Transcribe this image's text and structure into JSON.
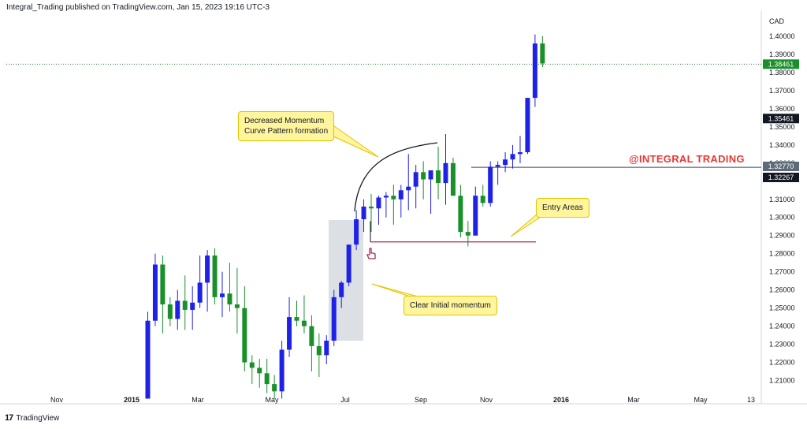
{
  "header": {
    "text": "Integral_Trading published on TradingView.com, Jan 15, 2023 19:16 UTC-3"
  },
  "footer": {
    "logo": "17",
    "brand": "TradingView"
  },
  "annotations": {
    "momentum_line1": "Decreased Momentum",
    "momentum_line2": "Curve Pattern formation",
    "entry": "Entry Areas",
    "initial": "Clear Initial momentum",
    "brand": "@INTEGRAL TRADING"
  },
  "colors": {
    "up": "#1e22e6",
    "down": "#1a8f2a",
    "price_line": "#2e7d32",
    "support_line": "#b0285a",
    "resistance_line": "#3c4a5a",
    "highlight_box": "#c9ced6",
    "callout_bg": "#fff59d"
  },
  "chart_data": {
    "type": "candlestick",
    "currency": "CAD",
    "ylim": [
      1.205,
      1.405
    ],
    "yticks": [
      "1.40000",
      "1.39000",
      "1.38000",
      "1.37000",
      "1.36000",
      "1.35000",
      "1.34000",
      "1.33000",
      "1.31000",
      "1.30000",
      "1.29000",
      "1.28000",
      "1.27000",
      "1.26000",
      "1.25000",
      "1.24000",
      "1.23000",
      "1.22000",
      "1.21000"
    ],
    "xticks": [
      "Nov",
      "2015",
      "Mar",
      "May",
      "Jul",
      "Sep",
      "Nov",
      "2016",
      "Mar",
      "May",
      "13"
    ],
    "price_labels": [
      {
        "value": 1.38461,
        "text": "1.38461",
        "style": "green"
      },
      {
        "value": 1.35461,
        "text": "1.35461",
        "style": "dark"
      },
      {
        "value": 1.3277,
        "text": "1.32770",
        "style": "gray"
      },
      {
        "value": 1.32267,
        "text": "1.32267",
        "style": "dark"
      }
    ],
    "candles": [
      {
        "o": 1.2,
        "h": 1.248,
        "l": 1.2,
        "c": 1.243
      },
      {
        "o": 1.243,
        "h": 1.28,
        "l": 1.24,
        "c": 1.274
      },
      {
        "o": 1.274,
        "h": 1.279,
        "l": 1.236,
        "c": 1.252
      },
      {
        "o": 1.252,
        "h": 1.256,
        "l": 1.24,
        "c": 1.244
      },
      {
        "o": 1.244,
        "h": 1.26,
        "l": 1.238,
        "c": 1.254
      },
      {
        "o": 1.254,
        "h": 1.268,
        "l": 1.238,
        "c": 1.249
      },
      {
        "o": 1.249,
        "h": 1.262,
        "l": 1.238,
        "c": 1.253
      },
      {
        "o": 1.253,
        "h": 1.279,
        "l": 1.25,
        "c": 1.264
      },
      {
        "o": 1.264,
        "h": 1.282,
        "l": 1.248,
        "c": 1.279
      },
      {
        "o": 1.279,
        "h": 1.283,
        "l": 1.252,
        "c": 1.256
      },
      {
        "o": 1.256,
        "h": 1.27,
        "l": 1.245,
        "c": 1.258
      },
      {
        "o": 1.258,
        "h": 1.275,
        "l": 1.248,
        "c": 1.252
      },
      {
        "o": 1.252,
        "h": 1.272,
        "l": 1.236,
        "c": 1.25
      },
      {
        "o": 1.25,
        "h": 1.262,
        "l": 1.215,
        "c": 1.22
      },
      {
        "o": 1.22,
        "h": 1.224,
        "l": 1.208,
        "c": 1.217
      },
      {
        "o": 1.217,
        "h": 1.222,
        "l": 1.206,
        "c": 1.214
      },
      {
        "o": 1.214,
        "h": 1.222,
        "l": 1.203,
        "c": 1.208
      },
      {
        "o": 1.208,
        "h": 1.213,
        "l": 1.2,
        "c": 1.204
      },
      {
        "o": 1.204,
        "h": 1.232,
        "l": 1.2,
        "c": 1.227
      },
      {
        "o": 1.227,
        "h": 1.256,
        "l": 1.223,
        "c": 1.245
      },
      {
        "o": 1.245,
        "h": 1.254,
        "l": 1.24,
        "c": 1.243
      },
      {
        "o": 1.243,
        "h": 1.257,
        "l": 1.236,
        "c": 1.24
      },
      {
        "o": 1.24,
        "h": 1.246,
        "l": 1.215,
        "c": 1.229
      },
      {
        "o": 1.229,
        "h": 1.236,
        "l": 1.212,
        "c": 1.224
      },
      {
        "o": 1.224,
        "h": 1.235,
        "l": 1.219,
        "c": 1.232
      },
      {
        "o": 1.232,
        "h": 1.26,
        "l": 1.229,
        "c": 1.256
      },
      {
        "o": 1.256,
        "h": 1.265,
        "l": 1.25,
        "c": 1.264
      },
      {
        "o": 1.264,
        "h": 1.285,
        "l": 1.262,
        "c": 1.285
      },
      {
        "o": 1.285,
        "h": 1.304,
        "l": 1.282,
        "c": 1.299
      },
      {
        "o": 1.299,
        "h": 1.31,
        "l": 1.292,
        "c": 1.306
      },
      {
        "o": 1.306,
        "h": 1.313,
        "l": 1.292,
        "c": 1.305
      },
      {
        "o": 1.305,
        "h": 1.312,
        "l": 1.296,
        "c": 1.311
      },
      {
        "o": 1.311,
        "h": 1.314,
        "l": 1.3,
        "c": 1.312
      },
      {
        "o": 1.312,
        "h": 1.318,
        "l": 1.296,
        "c": 1.31
      },
      {
        "o": 1.31,
        "h": 1.318,
        "l": 1.3,
        "c": 1.315
      },
      {
        "o": 1.315,
        "h": 1.335,
        "l": 1.304,
        "c": 1.317
      },
      {
        "o": 1.317,
        "h": 1.329,
        "l": 1.305,
        "c": 1.325
      },
      {
        "o": 1.325,
        "h": 1.331,
        "l": 1.31,
        "c": 1.321
      },
      {
        "o": 1.321,
        "h": 1.326,
        "l": 1.302,
        "c": 1.326
      },
      {
        "o": 1.326,
        "h": 1.339,
        "l": 1.31,
        "c": 1.319
      },
      {
        "o": 1.319,
        "h": 1.346,
        "l": 1.307,
        "c": 1.33
      },
      {
        "o": 1.33,
        "h": 1.333,
        "l": 1.312,
        "c": 1.312
      },
      {
        "o": 1.312,
        "h": 1.318,
        "l": 1.289,
        "c": 1.292
      },
      {
        "o": 1.292,
        "h": 1.298,
        "l": 1.284,
        "c": 1.29
      },
      {
        "o": 1.29,
        "h": 1.317,
        "l": 1.29,
        "c": 1.312
      },
      {
        "o": 1.312,
        "h": 1.318,
        "l": 1.306,
        "c": 1.308
      },
      {
        "o": 1.308,
        "h": 1.331,
        "l": 1.306,
        "c": 1.328
      },
      {
        "o": 1.328,
        "h": 1.331,
        "l": 1.318,
        "c": 1.329
      },
      {
        "o": 1.329,
        "h": 1.336,
        "l": 1.325,
        "c": 1.332
      },
      {
        "o": 1.332,
        "h": 1.34,
        "l": 1.327,
        "c": 1.335
      },
      {
        "o": 1.335,
        "h": 1.345,
        "l": 1.33,
        "c": 1.336
      },
      {
        "o": 1.336,
        "h": 1.366,
        "l": 1.335,
        "c": 1.366
      },
      {
        "o": 1.366,
        "h": 1.401,
        "l": 1.361,
        "c": 1.396
      },
      {
        "o": 1.396,
        "h": 1.4,
        "l": 1.383,
        "c": 1.385
      }
    ]
  }
}
